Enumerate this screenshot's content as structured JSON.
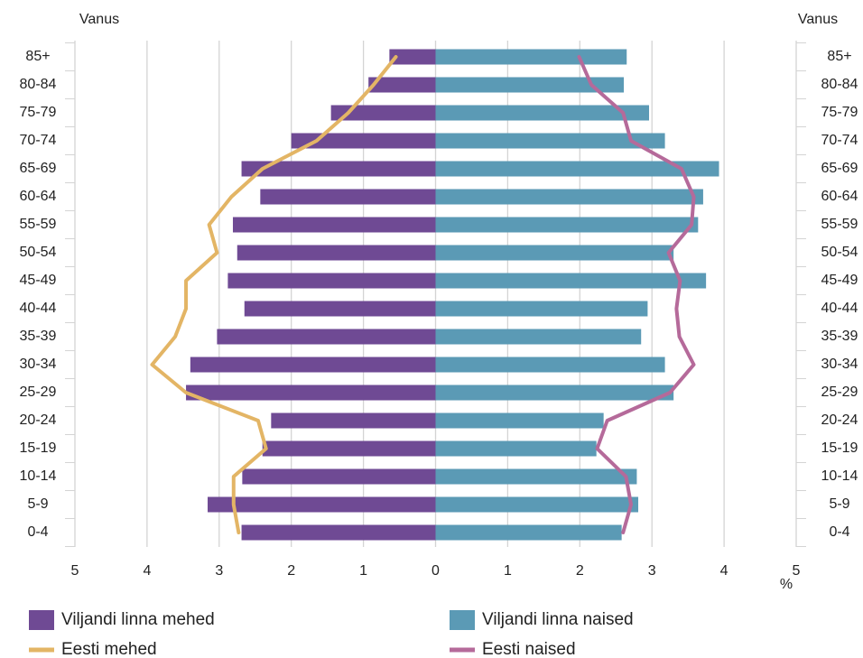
{
  "chart_data": {
    "type": "bar",
    "y_label": "Vanus",
    "x_label": "%",
    "categories": [
      "0-4",
      "5-9",
      "10-14",
      "15-19",
      "20-24",
      "25-29",
      "30-34",
      "35-39",
      "40-44",
      "45-49",
      "50-54",
      "55-59",
      "60-64",
      "65-69",
      "70-74",
      "75-79",
      "80-84",
      "85+"
    ],
    "xlim": [
      -5,
      5
    ],
    "xticks": [
      {
        "value": -5,
        "label": "5"
      },
      {
        "value": -4,
        "label": "4"
      },
      {
        "value": -3,
        "label": "3"
      },
      {
        "value": -2,
        "label": "2"
      },
      {
        "value": -1,
        "label": "1"
      },
      0,
      1,
      2,
      3,
      4,
      5
    ],
    "grid": true,
    "series": [
      {
        "name": "Viljandi linna mehed",
        "color": "#6f4a94",
        "type": "bar",
        "values": [
          -2.69,
          -3.16,
          -2.68,
          -2.4,
          -2.28,
          -3.46,
          -3.4,
          -3.03,
          -2.65,
          -2.88,
          -2.75,
          -2.81,
          -2.43,
          -2.69,
          -2.0,
          -1.45,
          -0.93,
          -0.64
        ]
      },
      {
        "name": "Viljandi linna naised",
        "color": "#5b9ab5",
        "type": "bar",
        "values": [
          2.58,
          2.81,
          2.79,
          2.23,
          2.33,
          3.3,
          3.18,
          2.85,
          2.94,
          3.75,
          3.3,
          3.64,
          3.71,
          3.93,
          3.18,
          2.96,
          2.61,
          2.65
        ]
      },
      {
        "name": "Eesti mehed",
        "color": "#e3b565",
        "type": "line",
        "values": [
          -2.73,
          -2.8,
          -2.8,
          -2.35,
          -2.46,
          -3.46,
          -3.93,
          -3.61,
          -3.46,
          -3.46,
          -3.03,
          -3.14,
          -2.83,
          -2.4,
          -1.65,
          -1.21,
          -0.86,
          -0.55
        ]
      },
      {
        "name": "Eesti naised",
        "color": "#b56a9a",
        "type": "line",
        "values": [
          2.6,
          2.71,
          2.64,
          2.24,
          2.38,
          3.25,
          3.58,
          3.38,
          3.34,
          3.39,
          3.23,
          3.55,
          3.58,
          3.41,
          2.71,
          2.6,
          2.16,
          1.99
        ]
      }
    ]
  }
}
